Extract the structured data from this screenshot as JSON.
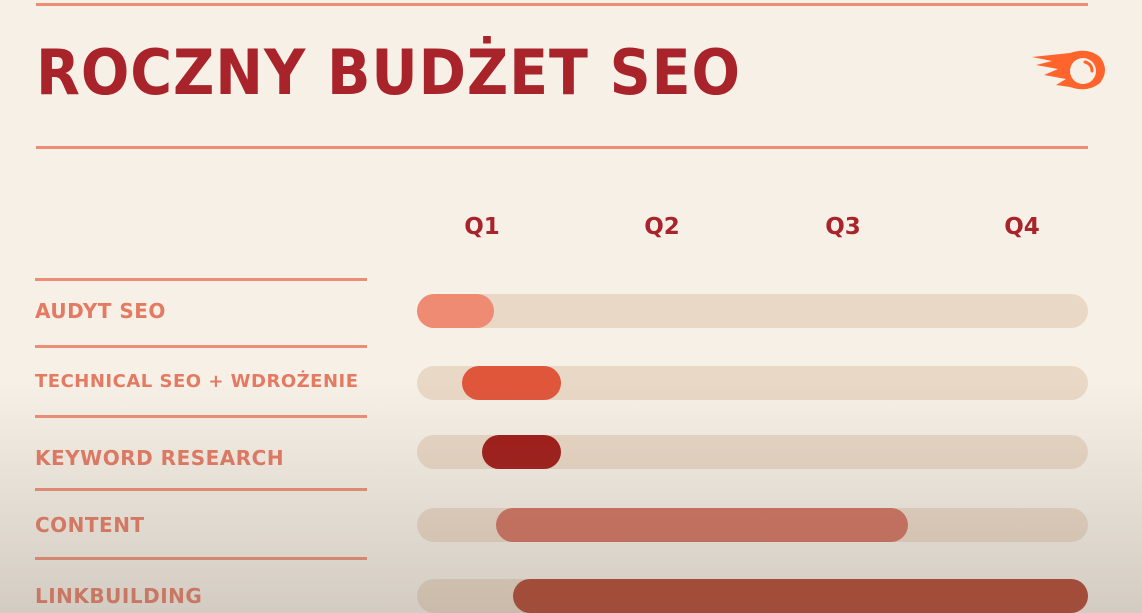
{
  "title": "ROCZNY BUDŻET SEO",
  "logo": {
    "icon": "semrush-fireball-icon",
    "color": "#ff642d"
  },
  "chart_data": {
    "type": "gantt",
    "title": "ROCZNY BUDŻET SEO",
    "xunit": "quarter",
    "xlim": [
      0,
      4
    ],
    "x_tick_labels": [
      "Q1",
      "Q2",
      "Q3",
      "Q4"
    ],
    "tasks": [
      {
        "label": "AUDYT SEO",
        "start": 0.0,
        "end": 0.46,
        "color": "#ef8a73"
      },
      {
        "label": "TECHNICAL SEO + WDROŻENIE",
        "start": 0.27,
        "end": 0.86,
        "color": "#e0563b"
      },
      {
        "label": "KEYWORD RESEARCH",
        "start": 0.39,
        "end": 0.86,
        "color": "#a01a17"
      },
      {
        "label": "CONTENT",
        "start": 0.47,
        "end": 2.93,
        "color": "#d0705e"
      },
      {
        "label": "LINKBUILDING",
        "start": 0.57,
        "end": 4.0,
        "color": "#b0412c"
      }
    ],
    "track_color": "#ead8c6",
    "grid": false
  }
}
